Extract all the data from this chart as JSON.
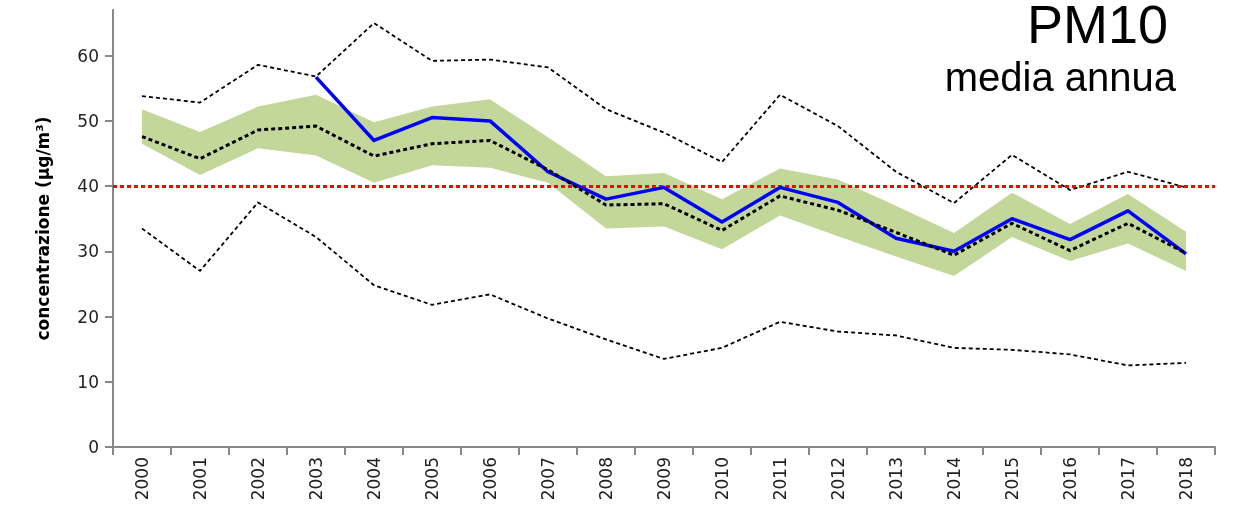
{
  "chart_data": {
    "type": "line",
    "title": "PM10",
    "subtitle": "media annua",
    "ylabel": "concentrazione (µg/m³)",
    "categories": [
      "2000",
      "2001",
      "2002",
      "2003",
      "2004",
      "2005",
      "2006",
      "2007",
      "2008",
      "2009",
      "2010",
      "2011",
      "2012",
      "2013",
      "2014",
      "2015",
      "2016",
      "2017",
      "2018"
    ],
    "ylim": [
      0,
      67
    ],
    "yticks": [
      0,
      10,
      20,
      30,
      40,
      50,
      60
    ],
    "grid": false,
    "marker": "none",
    "series": [
      {
        "color": "#000000",
        "line_style": "dashed",
        "values": [
          53.8,
          52.8,
          58.6,
          56.8,
          65,
          59.2,
          59.4,
          58.2,
          51.8,
          48.2,
          43.7,
          54,
          49.2,
          42.2,
          37.4,
          44.8,
          39.4,
          42.2,
          39.8
        ]
      },
      {
        "color": "#000000",
        "line_style": "dashed",
        "values": [
          33.5,
          27,
          37.5,
          32.2,
          24.8,
          21.8,
          23.4,
          19.7,
          16.5,
          13.5,
          15.2,
          19.2,
          17.7,
          17.1,
          15.2,
          14.9,
          14.2,
          12.5,
          12.9
        ]
      },
      {
        "color": "#000000",
        "line_style": "dashed",
        "values": [
          47.6,
          44.2,
          48.6,
          49.2,
          44.6,
          46.5,
          47,
          42.5,
          37.1,
          37.3,
          33.2,
          38.5,
          36.3,
          32.9,
          29.4,
          34.3,
          30.1,
          34.3,
          29.7
        ],
        "lower": [
          46.5,
          41.7,
          45.8,
          44.7,
          40.5,
          43.2,
          42.8,
          40.5,
          33.5,
          33.8,
          30.3,
          35.5,
          32.3,
          29.2,
          26.2,
          32.2,
          28.5,
          31.2,
          27
        ],
        "upper": [
          51.8,
          48.3,
          52.2,
          54,
          49.8,
          52.2,
          53.3,
          47.5,
          41.5,
          42,
          38,
          42.7,
          41,
          37,
          32.8,
          39,
          34.2,
          38.8,
          33
        ]
      },
      {
        "color": "#0000ff",
        "line_style": "solid",
        "values": [
          null,
          null,
          null,
          56.7,
          47,
          50.5,
          50,
          42.2,
          38,
          39.8,
          34.5,
          39.8,
          37.5,
          32,
          30,
          35,
          31.8,
          36.2,
          29.6
        ]
      }
    ],
    "ref_lines": [
      {
        "axis": "y",
        "value": 40,
        "color": "#ff0000",
        "line_style": "dashed"
      }
    ]
  }
}
